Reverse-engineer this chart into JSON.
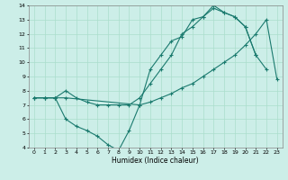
{
  "xlabel": "Humidex (Indice chaleur)",
  "background_color": "#cceee8",
  "grid_color": "#aaddcc",
  "line_color": "#1a7a6e",
  "xlim": [
    -0.5,
    23.5
  ],
  "ylim": [
    4,
    14
  ],
  "xticks": [
    0,
    1,
    2,
    3,
    4,
    5,
    6,
    7,
    8,
    9,
    10,
    11,
    12,
    13,
    14,
    15,
    16,
    17,
    18,
    19,
    20,
    21,
    22,
    23
  ],
  "yticks": [
    4,
    5,
    6,
    7,
    8,
    9,
    10,
    11,
    12,
    13,
    14
  ],
  "line1_x": [
    0,
    1,
    2,
    3,
    10,
    11,
    12,
    13,
    14,
    15,
    16,
    17,
    18,
    19,
    20,
    21,
    22,
    23
  ],
  "line1_y": [
    7.5,
    7.5,
    7.5,
    7.5,
    7.0,
    7.2,
    7.5,
    7.8,
    8.2,
    8.5,
    9.0,
    9.5,
    10.0,
    10.5,
    11.2,
    12.0,
    13.0,
    8.8
  ],
  "line2_x": [
    0,
    1,
    2,
    3,
    4,
    5,
    6,
    7,
    8,
    9,
    10,
    11,
    12,
    13,
    14,
    15,
    16,
    17,
    18,
    19,
    20,
    21,
    22
  ],
  "line2_y": [
    7.5,
    7.5,
    7.5,
    6.0,
    5.5,
    5.2,
    4.8,
    4.2,
    3.8,
    5.2,
    7.0,
    9.5,
    10.5,
    11.5,
    11.8,
    13.0,
    13.2,
    13.8,
    13.5,
    13.2,
    12.5,
    10.5,
    9.5
  ],
  "line3_x": [
    0,
    1,
    2,
    3,
    4,
    5,
    6,
    7,
    8,
    9,
    10,
    11,
    12,
    13,
    14,
    15,
    16,
    17,
    18,
    19,
    20,
    21
  ],
  "line3_y": [
    7.5,
    7.5,
    7.5,
    8.0,
    7.5,
    7.2,
    7.0,
    7.0,
    7.0,
    7.0,
    7.5,
    8.5,
    9.5,
    10.5,
    12.0,
    12.5,
    13.2,
    14.0,
    13.5,
    13.2,
    12.5,
    10.5
  ]
}
